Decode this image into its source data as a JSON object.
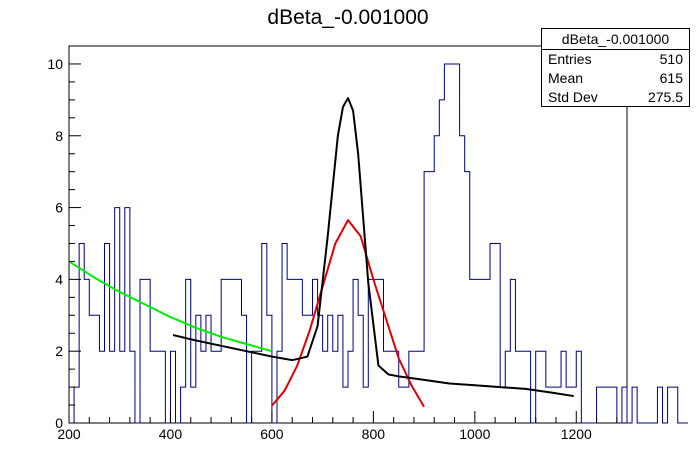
{
  "chart_data": {
    "type": "histogram",
    "title": "dBeta_-0.001000",
    "xlabel": "",
    "ylabel": "",
    "xlim": [
      200,
      1300
    ],
    "ylim": [
      0,
      10.5
    ],
    "x_ticks": [
      200,
      400,
      600,
      800,
      1000,
      1200
    ],
    "y_ticks": [
      0,
      2,
      4,
      6,
      8,
      10
    ],
    "grid": false,
    "bin_width": 10,
    "bin_start": 200,
    "histogram_counts": [
      0,
      1,
      5,
      4,
      3,
      3,
      2,
      5,
      2,
      6,
      2,
      6,
      2,
      0,
      4,
      4,
      2,
      2,
      2,
      0,
      2,
      0,
      1,
      4,
      1,
      3,
      2,
      3,
      2,
      2,
      4,
      4,
      4,
      4,
      3,
      0,
      2,
      2,
      5,
      3,
      0,
      2,
      5,
      4,
      4,
      4,
      3,
      3,
      4,
      3,
      2,
      3,
      2,
      3,
      1,
      2,
      4,
      3,
      1,
      4,
      4,
      4,
      2,
      2,
      2,
      1,
      1,
      2,
      2,
      2,
      7,
      7,
      8,
      9,
      10,
      10,
      10,
      8,
      7,
      4,
      4,
      4,
      4,
      5,
      5,
      1,
      2,
      4,
      2,
      2,
      2,
      0,
      2,
      2,
      1,
      1,
      1,
      2,
      1,
      1,
      2,
      0,
      0,
      0,
      1,
      1,
      1,
      1,
      0,
      1,
      0,
      1,
      0,
      0,
      0,
      0,
      1,
      0,
      1,
      1,
      0,
      0
    ],
    "series": [
      {
        "color": "#00ee00",
        "type": "curve",
        "x": [
          200,
          250,
          300,
          350,
          400,
          450,
          500,
          550,
          600
        ],
        "y": [
          4.5,
          4.05,
          3.65,
          3.3,
          2.95,
          2.65,
          2.4,
          2.2,
          2.0
        ]
      },
      {
        "color": "#dd0000",
        "type": "curve",
        "x": [
          600,
          625,
          650,
          675,
          700,
          725,
          750,
          775,
          800,
          825,
          850,
          875,
          900
        ],
        "y": [
          0.48,
          0.9,
          1.6,
          2.6,
          3.8,
          5.0,
          5.65,
          5.2,
          4.0,
          2.9,
          1.8,
          1.05,
          0.45
        ]
      },
      {
        "color": "#000000",
        "type": "curve",
        "x": [
          405,
          450,
          500,
          550,
          600,
          640,
          670,
          690,
          710,
          730,
          740,
          750,
          760,
          770,
          790,
          810,
          830,
          850,
          900,
          950,
          1000,
          1050,
          1100,
          1150,
          1195
        ],
        "y": [
          2.45,
          2.3,
          2.15,
          2.0,
          1.85,
          1.75,
          1.85,
          2.7,
          5.2,
          8.0,
          8.8,
          9.05,
          8.7,
          7.5,
          3.9,
          1.6,
          1.35,
          1.3,
          1.2,
          1.1,
          1.05,
          1.0,
          0.95,
          0.85,
          0.75
        ]
      }
    ],
    "stats": {
      "name": "dBeta_-0.001000",
      "rows": [
        {
          "label": "Entries",
          "value": "510"
        },
        {
          "label": "Mean",
          "value": "615"
        },
        {
          "label": "Std Dev",
          "value": "275.5"
        }
      ]
    }
  }
}
